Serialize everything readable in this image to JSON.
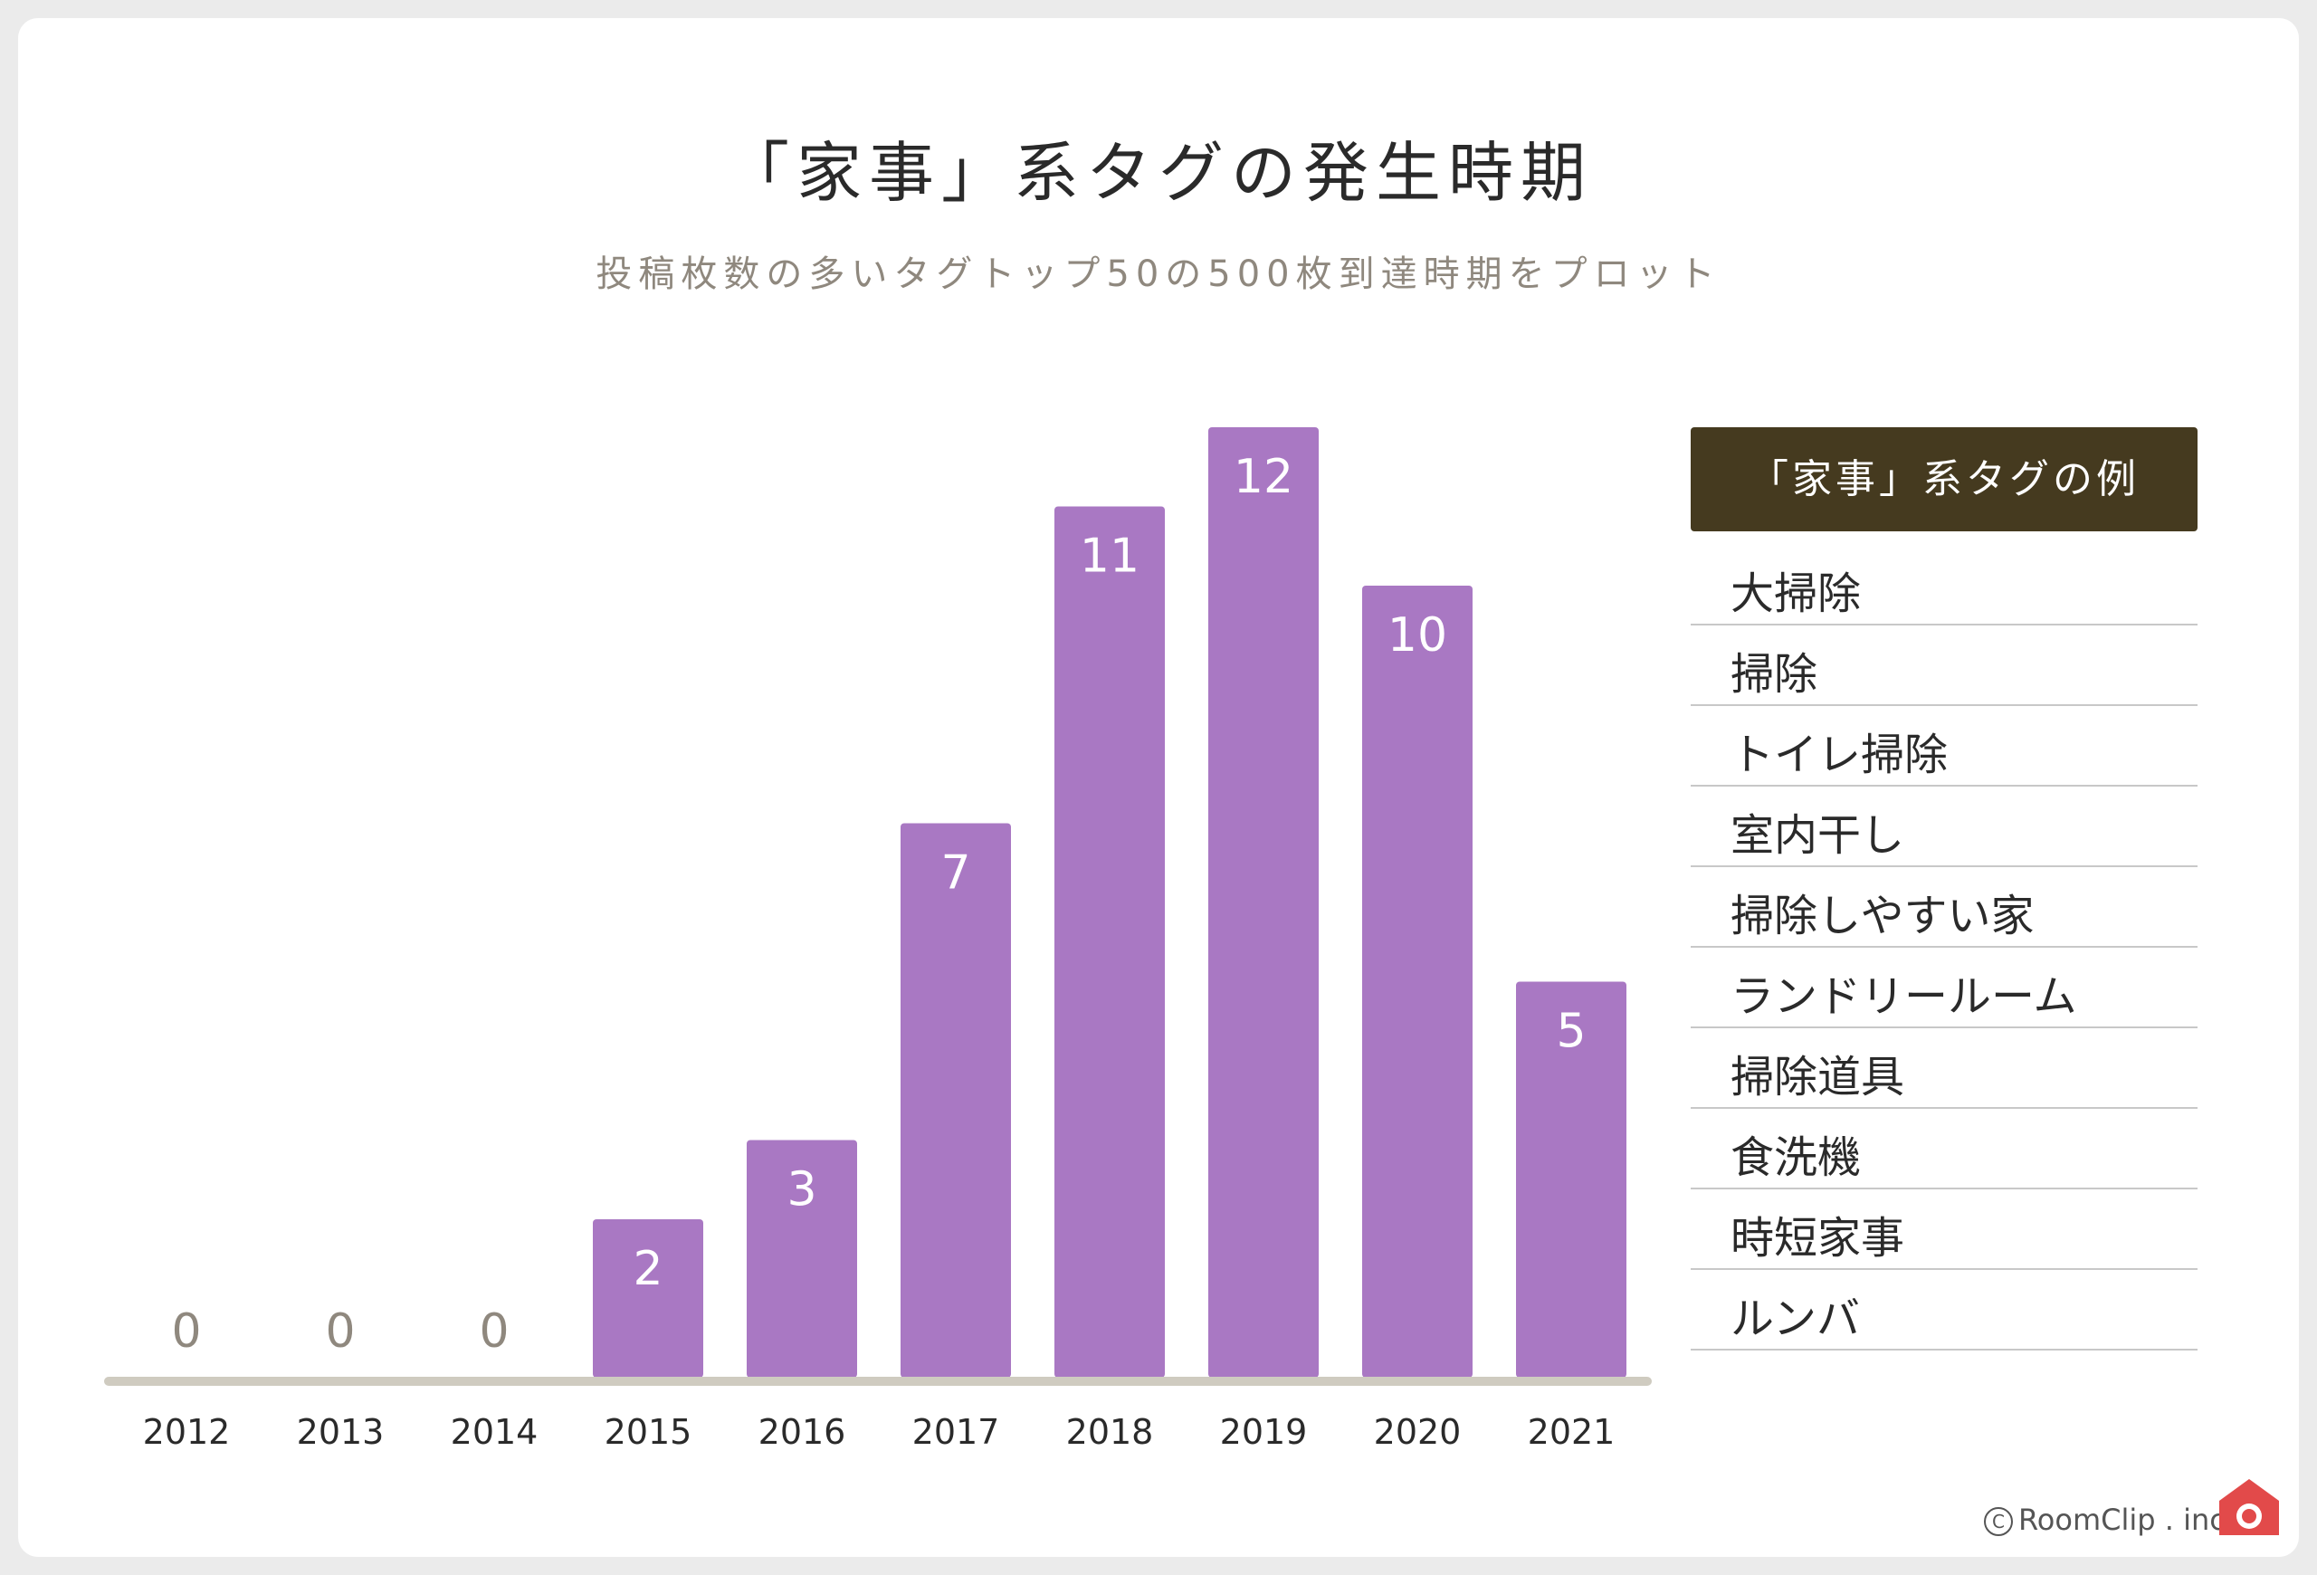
{
  "title": "「家事」系タグの発生時期",
  "subtitle": "投稿枚数の多いタグトップ50の500枚到達時期をプロット",
  "chart_data": {
    "type": "bar",
    "title": "「家事」系タグの発生時期",
    "subtitle": "投稿枚数の多いタグトップ50の500枚到達時期をプロット",
    "categories": [
      "2012",
      "2013",
      "2014",
      "2015",
      "2016",
      "2017",
      "2018",
      "2019",
      "2020",
      "2021"
    ],
    "values": [
      0,
      0,
      0,
      2,
      3,
      7,
      11,
      12,
      10,
      5
    ],
    "xlabel": "",
    "ylabel": "",
    "ylim": [
      0,
      12
    ],
    "grid": false,
    "colors": {
      "bar": "#a978c3",
      "axis": "#cfcbc0",
      "zero_label": "#8f887e",
      "bar_label": "#ffffff"
    }
  },
  "legend": {
    "header": "「家事」系タグの例",
    "items": [
      "大掃除",
      "掃除",
      "トイレ掃除",
      "室内干し",
      "掃除しやすい家",
      "ランドリールーム",
      "掃除道具",
      "食洗機",
      "時短家事",
      "ルンバ"
    ]
  },
  "credit": {
    "symbol": "C",
    "text": "RoomClip . inc"
  },
  "colors": {
    "legend_header_bg": "#453a1f",
    "logo": "#e24a4a",
    "background": "#ebebeb"
  },
  "icons": {
    "logo": "roomclip-logo-icon"
  }
}
